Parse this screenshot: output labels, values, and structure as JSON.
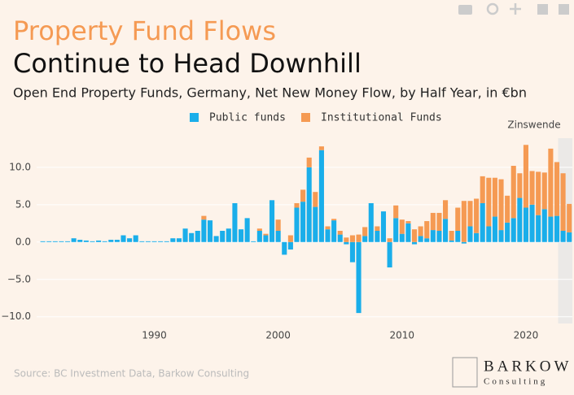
{
  "chart_data": {
    "type": "bar",
    "title": "Property Fund Flows",
    "title_line2": "Continue to Head Downhill",
    "subtitle": "Open End Property Funds, Germany, Net New Money Flow, by Half Year, in €bn",
    "source": "Source: BC Investment Data, Barkow Consulting",
    "logo": {
      "name": "BARKOW",
      "tagline": "Consulting"
    },
    "annotation": {
      "text": "Zinswende",
      "shade": [
        2022.6,
        2023.75
      ]
    },
    "stacking": "relative",
    "x": [
      1981,
      1981.5,
      1982,
      1982.5,
      1983,
      1983.5,
      1984,
      1984.5,
      1985,
      1985.5,
      1986,
      1986.5,
      1987,
      1987.5,
      1988,
      1988.5,
      1989,
      1989.5,
      1990,
      1990.5,
      1991,
      1991.5,
      1992,
      1992.5,
      1993,
      1993.5,
      1994,
      1994.5,
      1995,
      1995.5,
      1996,
      1996.5,
      1997,
      1997.5,
      1998,
      1998.5,
      1999,
      1999.5,
      2000,
      2000.5,
      2001,
      2001.5,
      2002,
      2002.5,
      2003,
      2003.5,
      2004,
      2004.5,
      2005,
      2005.5,
      2006,
      2006.5,
      2007,
      2007.5,
      2008,
      2008.5,
      2009,
      2009.5,
      2010,
      2010.5,
      2011,
      2011.5,
      2012,
      2012.5,
      2013,
      2013.5,
      2014,
      2014.5,
      2015,
      2015.5,
      2016,
      2016.5,
      2017,
      2017.5,
      2018,
      2018.5,
      2019,
      2019.5,
      2020,
      2020.5,
      2021,
      2021.5,
      2022,
      2022.5,
      2023,
      2023.5
    ],
    "series": [
      {
        "name": "Public funds",
        "color": "#1aaeea",
        "values": [
          0.1,
          0.1,
          0.1,
          0.1,
          0.1,
          0.5,
          0.3,
          0.2,
          0.1,
          0.2,
          0.1,
          0.3,
          0.3,
          0.9,
          0.5,
          0.9,
          0.1,
          0.1,
          0.1,
          0.1,
          0.1,
          0.5,
          0.5,
          1.8,
          1.2,
          1.5,
          3.0,
          2.9,
          0.8,
          1.5,
          1.8,
          5.2,
          1.7,
          3.2,
          0.1,
          1.5,
          0.9,
          5.6,
          1.5,
          -1.7,
          -1.0,
          4.6,
          5.4,
          10.0,
          4.7,
          12.3,
          1.7,
          2.9,
          1.0,
          -0.3,
          -2.7,
          -9.5,
          0.8,
          5.2,
          1.5,
          4.1,
          -3.4,
          3.2,
          1.1,
          2.5,
          -0.3,
          0.8,
          0.5,
          1.6,
          1.5,
          3.1,
          0.2,
          1.5,
          -0.2,
          2.1,
          1.2,
          5.2,
          2.1,
          3.4,
          1.6,
          2.6,
          3.2,
          5.9,
          4.6,
          5.0,
          3.6,
          4.4,
          3.4,
          3.5,
          1.5,
          1.3
        ]
      },
      {
        "name": "Institutional Funds",
        "color": "#f59a53",
        "values": [
          0,
          0,
          0,
          0,
          0,
          0,
          0,
          0,
          0,
          0,
          0,
          0,
          0,
          0,
          0,
          0,
          0,
          0,
          0,
          0,
          0,
          0,
          0,
          0,
          0,
          0,
          0.5,
          0,
          0,
          0,
          0,
          0,
          0,
          0,
          0,
          0.3,
          0.2,
          0,
          1.5,
          0,
          0.9,
          0.6,
          1.6,
          1.3,
          2.0,
          0.5,
          0.4,
          0.2,
          0.5,
          0.6,
          0.9,
          1.0,
          1.2,
          0,
          0.6,
          0,
          0.5,
          1.7,
          1.9,
          0.3,
          1.7,
          1.3,
          2.3,
          2.3,
          2.4,
          2.5,
          1.3,
          3.1,
          5.5,
          3.4,
          4.6,
          3.6,
          6.5,
          5.2,
          6.8,
          3.6,
          7.0,
          3.3,
          8.4,
          4.5,
          5.8,
          4.9,
          9.1,
          7.2,
          7.7,
          3.8
        ]
      }
    ],
    "xlim": [
      1980.5,
      2023.75
    ],
    "xticks": [
      1990,
      2000,
      2010,
      2020
    ],
    "ylim": [
      -10.9,
      13.9
    ],
    "yticks": [
      {
        "value": -10,
        "label": "−10.0"
      },
      {
        "value": -5,
        "label": "−5.0"
      },
      {
        "value": 0,
        "label": "0.0"
      },
      {
        "value": 5,
        "label": "5.0"
      },
      {
        "value": 10,
        "label": "10.0"
      }
    ],
    "grid": true
  }
}
